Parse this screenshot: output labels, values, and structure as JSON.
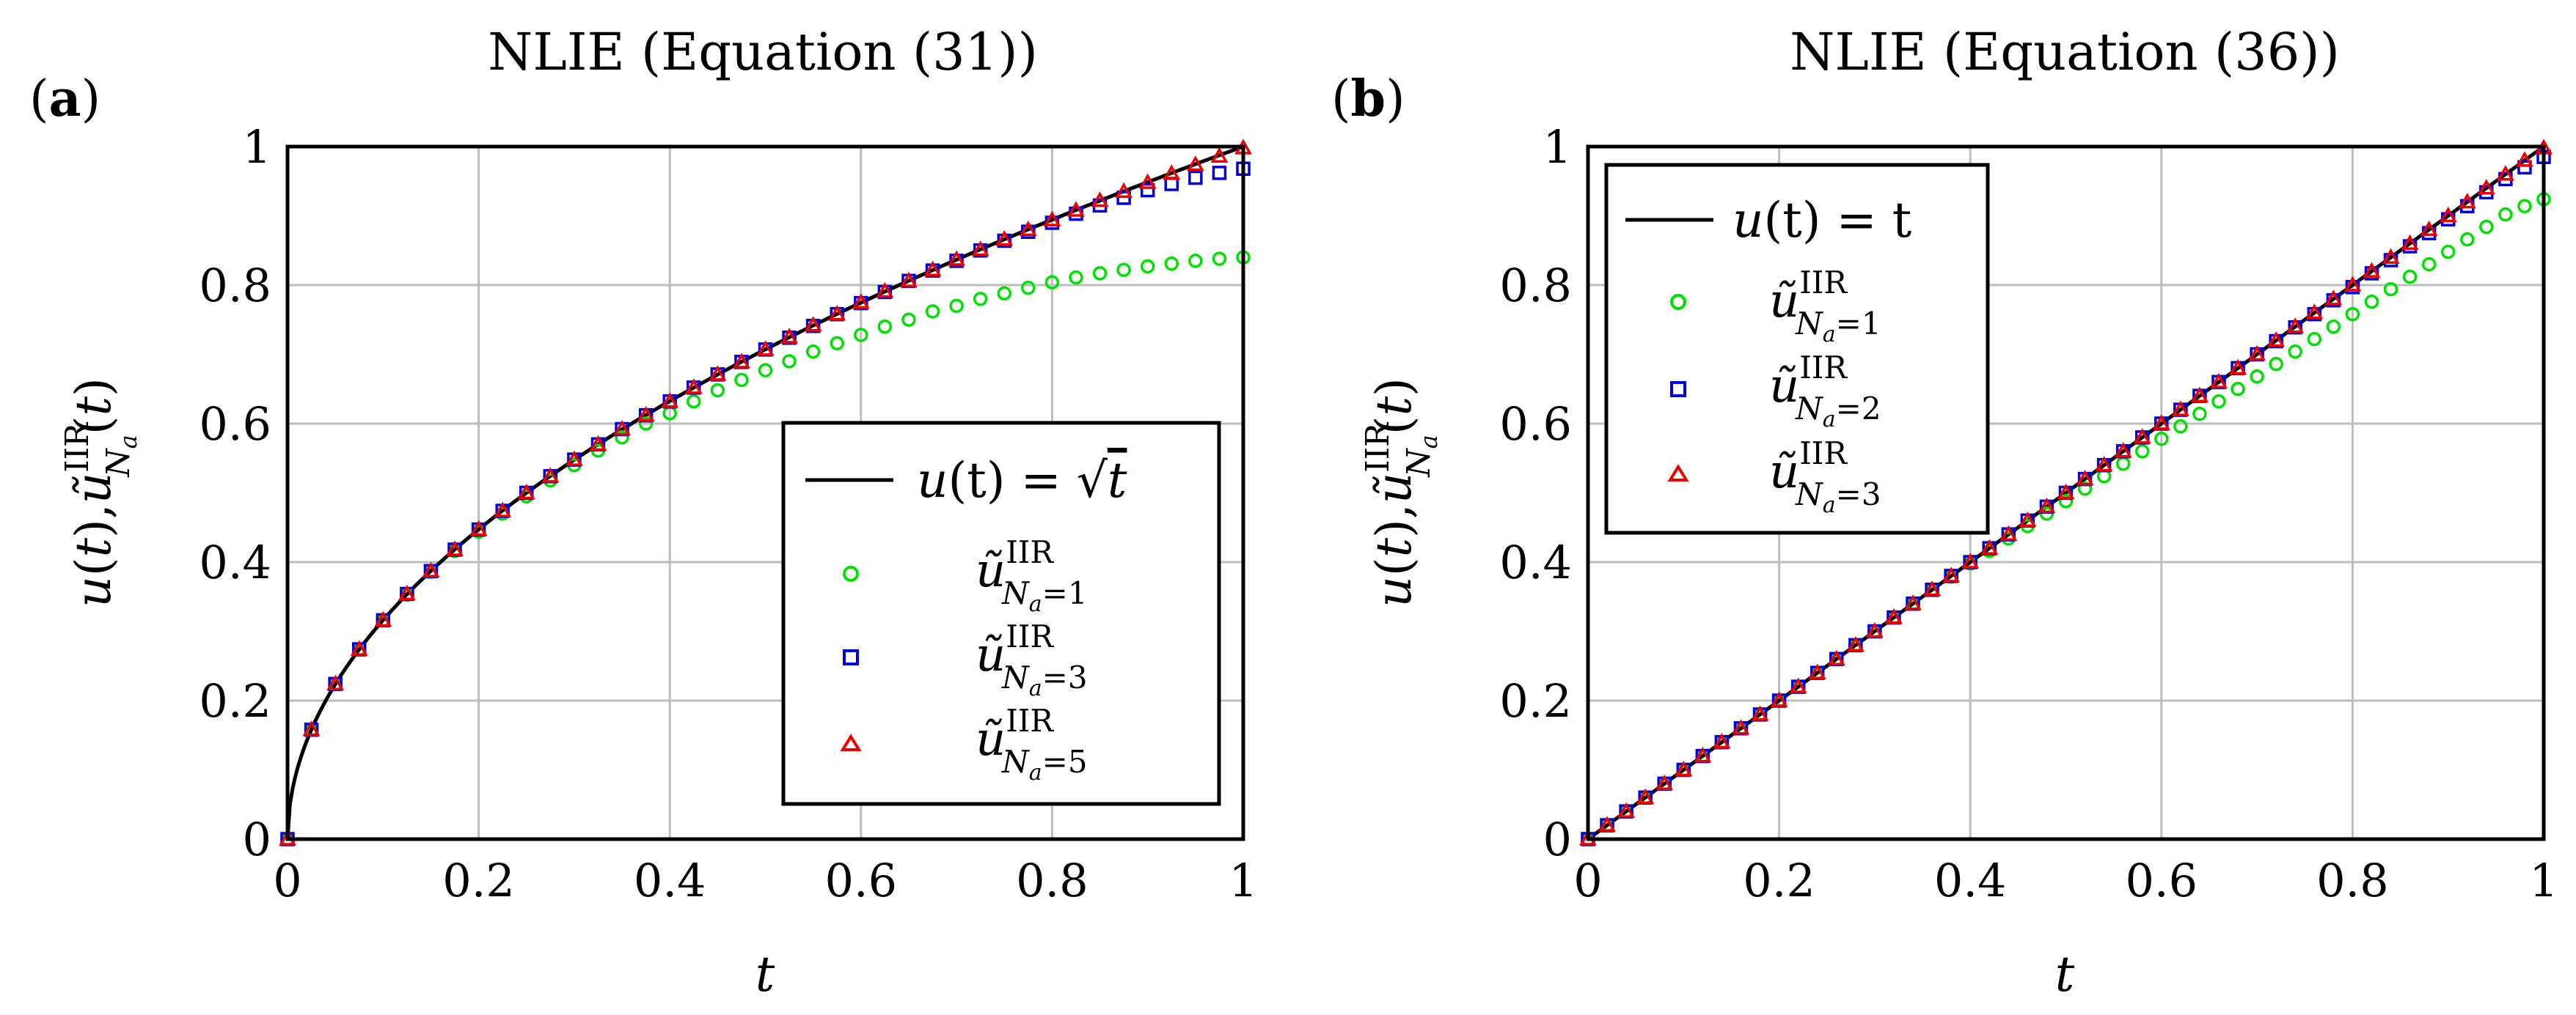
{
  "chart_data": [
    {
      "panel": "a",
      "panel_tag_open": "(",
      "panel_tag_letter": "a",
      "panel_tag_close": ")",
      "type": "line",
      "title": "NLIE (Equation (31))",
      "xlabel": "t",
      "ylabel": "u(t),ũ^IIR_Na(t)",
      "xlim": [
        0,
        1
      ],
      "ylim": [
        0,
        1
      ],
      "xticks": [
        "0",
        "0.2",
        "0.4",
        "0.6",
        "0.8",
        "1"
      ],
      "yticks": [
        "0",
        "0.2",
        "0.4",
        "0.6",
        "0.8",
        "1"
      ],
      "grid": true,
      "legend_position": "bottom-right",
      "x": [
        0,
        0.025,
        0.05,
        0.075,
        0.1,
        0.125,
        0.15,
        0.175,
        0.2,
        0.225,
        0.25,
        0.275,
        0.3,
        0.325,
        0.35,
        0.375,
        0.4,
        0.425,
        0.45,
        0.475,
        0.5,
        0.525,
        0.55,
        0.575,
        0.6,
        0.625,
        0.65,
        0.675,
        0.7,
        0.725,
        0.75,
        0.775,
        0.8,
        0.825,
        0.85,
        0.875,
        0.9,
        0.925,
        0.95,
        0.975,
        1
      ],
      "series": [
        {
          "name": "u(t) = √t",
          "style": "line",
          "color": "#000000",
          "function": "sqrt(t)",
          "legend_prefix": "u",
          "legend_arg": "(t) = ",
          "legend_sqrt": "√",
          "legend_radicand": "t",
          "legend_sub": ""
        },
        {
          "name": "ũ^IIR_Na=1",
          "style": "circle",
          "color": "#00e000",
          "legend_prefix": "ũ",
          "legend_sup": "IIR",
          "legend_sub_var": "N",
          "legend_sub_index": "a",
          "legend_sub_value": "=1",
          "values": [
            0,
            0.158,
            0.224,
            0.274,
            0.316,
            0.353,
            0.386,
            0.416,
            0.444,
            0.47,
            0.495,
            0.518,
            0.54,
            0.561,
            0.58,
            0.6,
            0.615,
            0.632,
            0.648,
            0.663,
            0.677,
            0.69,
            0.704,
            0.716,
            0.728,
            0.74,
            0.75,
            0.762,
            0.77,
            0.78,
            0.788,
            0.796,
            0.804,
            0.811,
            0.817,
            0.822,
            0.827,
            0.831,
            0.835,
            0.838,
            0.84
          ]
        },
        {
          "name": "ũ^IIR_Na=3",
          "style": "square",
          "color": "#0000dd",
          "legend_prefix": "ũ",
          "legend_sup": "IIR",
          "legend_sub_var": "N",
          "legend_sub_index": "a",
          "legend_sub_value": "=3",
          "values": [
            0,
            0.158,
            0.224,
            0.274,
            0.316,
            0.354,
            0.387,
            0.418,
            0.447,
            0.474,
            0.5,
            0.524,
            0.548,
            0.57,
            0.592,
            0.612,
            0.632,
            0.652,
            0.671,
            0.689,
            0.707,
            0.724,
            0.741,
            0.758,
            0.774,
            0.79,
            0.806,
            0.821,
            0.835,
            0.85,
            0.864,
            0.877,
            0.89,
            0.903,
            0.915,
            0.926,
            0.937,
            0.946,
            0.955,
            0.962,
            0.968
          ]
        },
        {
          "name": "ũ^IIR_Na=5",
          "style": "triangle",
          "color": "#ee0000",
          "legend_prefix": "ũ",
          "legend_sup": "IIR",
          "legend_sub_var": "N",
          "legend_sub_index": "a",
          "legend_sub_value": "=5",
          "values": [
            0,
            0.158,
            0.224,
            0.274,
            0.316,
            0.354,
            0.387,
            0.418,
            0.447,
            0.474,
            0.5,
            0.524,
            0.548,
            0.57,
            0.592,
            0.612,
            0.632,
            0.652,
            0.671,
            0.689,
            0.707,
            0.725,
            0.742,
            0.758,
            0.775,
            0.791,
            0.806,
            0.822,
            0.837,
            0.851,
            0.866,
            0.88,
            0.894,
            0.908,
            0.922,
            0.935,
            0.948,
            0.961,
            0.974,
            0.986,
            0.998
          ]
        }
      ]
    },
    {
      "panel": "b",
      "panel_tag_open": "(",
      "panel_tag_letter": "b",
      "panel_tag_close": ")",
      "type": "line",
      "title": "NLIE (Equation (36))",
      "xlabel": "t",
      "ylabel": "u(t),ũ^IIR_Na(t)",
      "xlim": [
        0,
        1
      ],
      "ylim": [
        0,
        1
      ],
      "xticks": [
        "0",
        "0.2",
        "0.4",
        "0.6",
        "0.8",
        "1"
      ],
      "yticks": [
        "0",
        "0.2",
        "0.4",
        "0.6",
        "0.8",
        "1"
      ],
      "grid": true,
      "legend_position": "top-left",
      "x": [
        0,
        0.02,
        0.04,
        0.06,
        0.08,
        0.1,
        0.12,
        0.14,
        0.16,
        0.18,
        0.2,
        0.22,
        0.24,
        0.26,
        0.28,
        0.3,
        0.32,
        0.34,
        0.36,
        0.38,
        0.4,
        0.42,
        0.44,
        0.46,
        0.48,
        0.5,
        0.52,
        0.54,
        0.56,
        0.58,
        0.6,
        0.62,
        0.64,
        0.66,
        0.68,
        0.7,
        0.72,
        0.74,
        0.76,
        0.78,
        0.8,
        0.82,
        0.84,
        0.86,
        0.88,
        0.9,
        0.92,
        0.94,
        0.96,
        0.98,
        1
      ],
      "series": [
        {
          "name": "u(t) = t",
          "style": "line",
          "color": "#000000",
          "function": "t",
          "legend_prefix": "u",
          "legend_arg": "(t) = t",
          "legend_sqrt": "",
          "legend_radicand": "",
          "legend_sub": ""
        },
        {
          "name": "ũ^IIR_Na=1",
          "style": "circle",
          "color": "#00e000",
          "legend_prefix": "ũ",
          "legend_sup": "IIR",
          "legend_sub_var": "N",
          "legend_sub_index": "a",
          "legend_sub_value": "=1",
          "values": [
            0,
            0.02,
            0.04,
            0.06,
            0.08,
            0.1,
            0.12,
            0.14,
            0.16,
            0.18,
            0.2,
            0.22,
            0.24,
            0.26,
            0.28,
            0.3,
            0.32,
            0.34,
            0.36,
            0.379,
            0.398,
            0.416,
            0.434,
            0.452,
            0.47,
            0.488,
            0.506,
            0.524,
            0.542,
            0.56,
            0.578,
            0.596,
            0.614,
            0.632,
            0.65,
            0.668,
            0.686,
            0.704,
            0.722,
            0.74,
            0.758,
            0.776,
            0.794,
            0.812,
            0.83,
            0.848,
            0.866,
            0.884,
            0.902,
            0.914,
            0.924
          ]
        },
        {
          "name": "ũ^IIR_Na=2",
          "style": "square",
          "color": "#0000dd",
          "legend_prefix": "ũ",
          "legend_sup": "IIR",
          "legend_sub_var": "N",
          "legend_sub_index": "a",
          "legend_sub_value": "=2",
          "values": [
            0,
            0.02,
            0.04,
            0.06,
            0.08,
            0.1,
            0.12,
            0.14,
            0.16,
            0.18,
            0.2,
            0.22,
            0.24,
            0.26,
            0.28,
            0.3,
            0.32,
            0.34,
            0.36,
            0.38,
            0.4,
            0.42,
            0.44,
            0.46,
            0.48,
            0.5,
            0.52,
            0.54,
            0.56,
            0.58,
            0.6,
            0.62,
            0.64,
            0.66,
            0.68,
            0.7,
            0.719,
            0.739,
            0.758,
            0.778,
            0.797,
            0.817,
            0.836,
            0.856,
            0.875,
            0.895,
            0.914,
            0.934,
            0.953,
            0.97,
            0.985
          ]
        },
        {
          "name": "ũ^IIR_Na=3",
          "style": "triangle",
          "color": "#ee0000",
          "legend_prefix": "ũ",
          "legend_sup": "IIR",
          "legend_sub_var": "N",
          "legend_sub_index": "a",
          "legend_sub_value": "=3",
          "values": [
            0,
            0.02,
            0.04,
            0.06,
            0.08,
            0.1,
            0.12,
            0.14,
            0.16,
            0.18,
            0.2,
            0.22,
            0.24,
            0.26,
            0.28,
            0.3,
            0.32,
            0.34,
            0.36,
            0.38,
            0.4,
            0.42,
            0.44,
            0.46,
            0.48,
            0.5,
            0.52,
            0.54,
            0.56,
            0.58,
            0.6,
            0.62,
            0.64,
            0.66,
            0.68,
            0.7,
            0.72,
            0.74,
            0.76,
            0.78,
            0.8,
            0.82,
            0.84,
            0.86,
            0.88,
            0.9,
            0.92,
            0.94,
            0.96,
            0.98,
            0.998
          ]
        }
      ]
    }
  ],
  "ylabel_parts": {
    "u": "u",
    "open": "(",
    "t": "t",
    "close": ")",
    "comma": ",",
    "utilde": "ũ",
    "sup": "IIR",
    "sub_var": "N",
    "sub_index": "a"
  }
}
